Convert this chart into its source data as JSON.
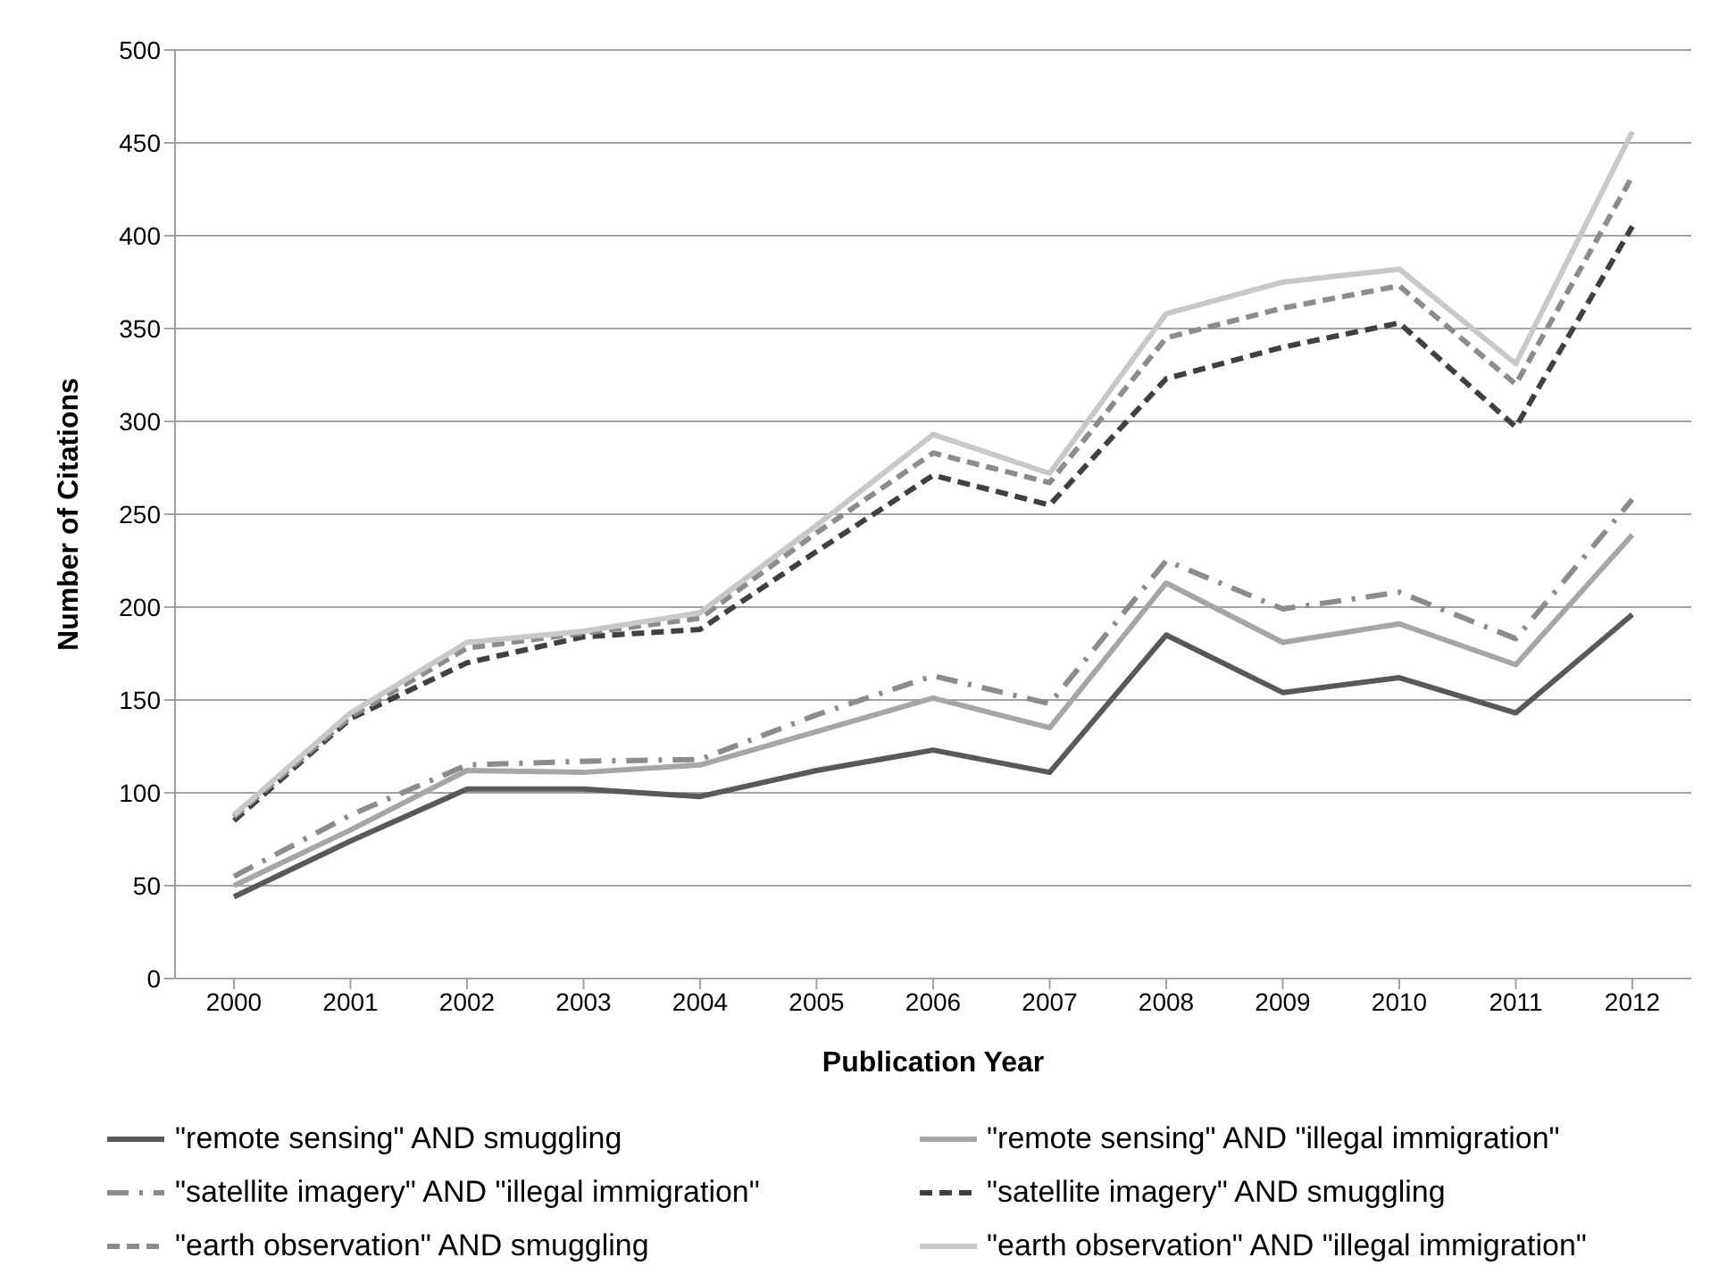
{
  "chart_data": {
    "type": "line",
    "xlabel": "Publication Year",
    "ylabel": "Number of Citations",
    "categories": [
      "2000",
      "2001",
      "2002",
      "2003",
      "2004",
      "2005",
      "2006",
      "2007",
      "2008",
      "2009",
      "2010",
      "2011",
      "2012"
    ],
    "ylim": [
      0,
      500
    ],
    "yticks": [
      0,
      50,
      100,
      150,
      200,
      250,
      300,
      350,
      400,
      450,
      500
    ],
    "grid": "y",
    "legend": "bottom",
    "marker": "none",
    "series": [
      {
        "name": "\"remote sensing\" AND smuggling",
        "color": "#595959",
        "line_style": "solid",
        "values": [
          44,
          74,
          102,
          102,
          98,
          112,
          123,
          111,
          185,
          154,
          162,
          143,
          196
        ]
      },
      {
        "name": "\"remote sensing\" AND \"illegal immigration\"",
        "color": "#a6a6a6",
        "line_style": "solid",
        "values": [
          50,
          80,
          112,
          111,
          115,
          133,
          151,
          135,
          213,
          181,
          191,
          169,
          239
        ]
      },
      {
        "name": "\"satellite imagery\" AND \"illegal immigration\"",
        "color": "#8c8c8c",
        "line_style": "dashdot",
        "values": [
          55,
          88,
          115,
          117,
          118,
          142,
          163,
          148,
          225,
          199,
          208,
          183,
          258
        ]
      },
      {
        "name": "\"satellite imagery\" AND smuggling",
        "color": "#404040",
        "line_style": "dashed",
        "values": [
          85,
          140,
          170,
          184,
          188,
          230,
          271,
          255,
          323,
          340,
          353,
          297,
          405
        ]
      },
      {
        "name": "\"earth observation\" AND smuggling",
        "color": "#8c8c8c",
        "line_style": "dashed",
        "values": [
          87,
          141,
          178,
          186,
          194,
          240,
          283,
          267,
          345,
          361,
          373,
          320,
          432
        ]
      },
      {
        "name": "\"earth observation\" AND \"illegal immigration\"",
        "color": "#c8c8c8",
        "line_style": "solid",
        "values": [
          88,
          143,
          181,
          187,
          197,
          244,
          293,
          272,
          358,
          375,
          382,
          331,
          456
        ]
      }
    ]
  }
}
